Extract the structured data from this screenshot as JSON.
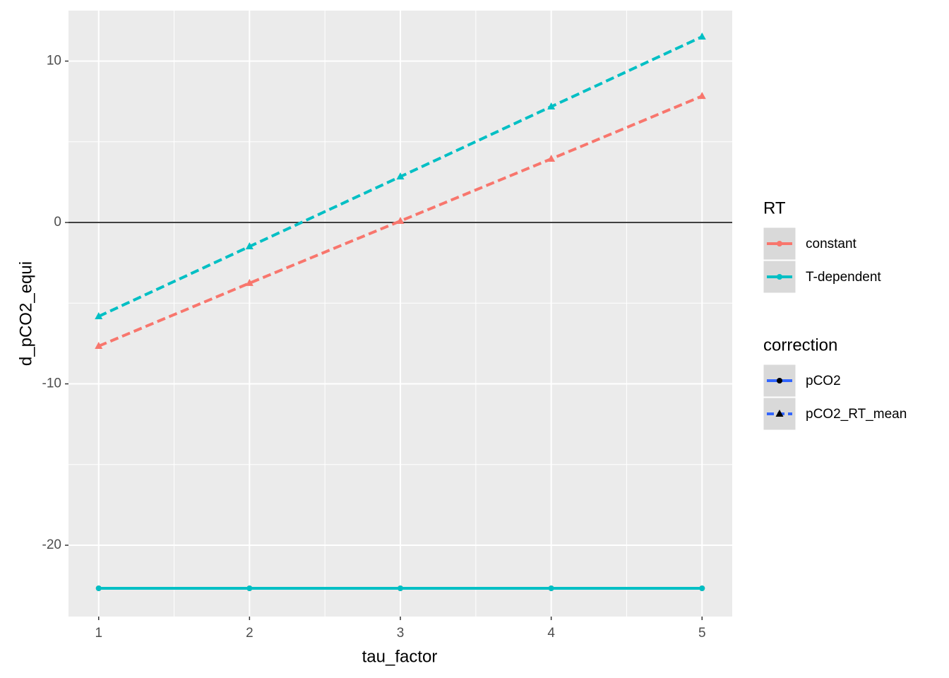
{
  "chart_data": {
    "type": "line",
    "x_label": "tau_factor",
    "y_label": "d_pCO2_equi",
    "x": [
      1,
      2,
      3,
      4,
      5
    ],
    "xlim": [
      0.8,
      5.2
    ],
    "xticks": [
      1,
      2,
      3,
      4,
      5
    ],
    "x_minor_ticks": [
      1.5,
      2.5,
      3.5,
      4.5
    ],
    "ylim": [
      -24.42,
      13.13
    ],
    "yticks": [
      -20,
      -10,
      0,
      10
    ],
    "y_minor_ticks": [
      -15,
      -5,
      5
    ],
    "grid": true,
    "hline": 0,
    "series": [
      {
        "color": "#F8766D",
        "linetype": "solid",
        "shape": "circle",
        "values": [
          -22.67,
          -22.67,
          -22.67,
          -22.67,
          -22.67
        ]
      },
      {
        "color": "#00BFC4",
        "linetype": "solid",
        "shape": "circle",
        "values": [
          -22.67,
          -22.67,
          -22.67,
          -22.67,
          -22.67
        ]
      },
      {
        "color": "#F8766D",
        "linetype": "dashed",
        "shape": "triangle",
        "values": [
          -7.66,
          -3.76,
          0.09,
          3.94,
          7.83
        ]
      },
      {
        "color": "#00BFC4",
        "linetype": "dashed",
        "shape": "triangle",
        "values": [
          -5.82,
          -1.49,
          2.84,
          7.18,
          11.51
        ]
      }
    ],
    "legends": [
      {
        "title": "RT",
        "entries": [
          {
            "label": "constant",
            "color": "#F8766D",
            "linetype": "solid",
            "shape": "circle"
          },
          {
            "label": "T-dependent",
            "color": "#00BFC4",
            "linetype": "solid",
            "shape": "circle"
          }
        ]
      },
      {
        "title": "correction",
        "entries": [
          {
            "label": "pCO2",
            "color": "#3366FF",
            "linetype": "solid",
            "shape": "circle"
          },
          {
            "label": "pCO2_RT_mean",
            "color": "#3366FF",
            "linetype": "dashed",
            "shape": "triangle"
          }
        ]
      }
    ]
  }
}
